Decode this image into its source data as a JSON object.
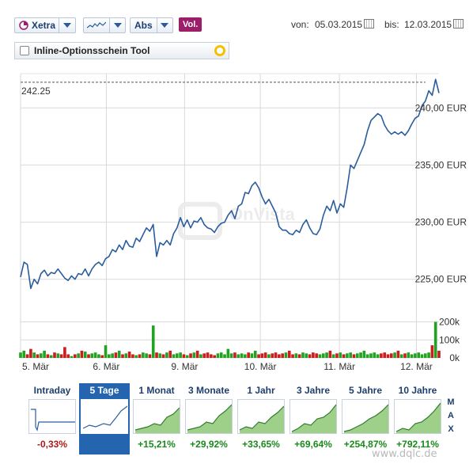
{
  "toolbar": {
    "exchange": "Xetra",
    "mode": "Abs",
    "vol_label": "Vol.",
    "chart_icon": "line-chart-icon",
    "from_label": "von:",
    "from_date": "05.03.2015",
    "to_label": "bis:",
    "to_date": "12.03.2015"
  },
  "tool": {
    "label": "Inline-Optionsschein Tool"
  },
  "watermark": "OnVista",
  "chart_data": {
    "type": "line",
    "title": "",
    "xlabel": "",
    "ylabel": "",
    "reference_label": "242.25",
    "reference_value": 242.25,
    "ylim": [
      222,
      243
    ],
    "yticks": [
      "240,00 EUR",
      "235,00 EUR",
      "230,00 EUR",
      "225,00 EUR"
    ],
    "ytick_values": [
      240,
      235,
      230,
      225
    ],
    "xticks": [
      "5. Mär",
      "6. Mär",
      "9. Mär",
      "10. Mär",
      "11. Mär",
      "12. Mär"
    ],
    "price": [
      225.2,
      226.5,
      226.3,
      224.2,
      225.0,
      224.6,
      225.5,
      225.8,
      225.3,
      225.6,
      225.5,
      225.9,
      225.5,
      225.1,
      224.9,
      225.3,
      225.0,
      225.5,
      225.4,
      225.9,
      225.3,
      225.9,
      226.3,
      226.5,
      226.2,
      226.8,
      227.0,
      227.6,
      227.4,
      228.0,
      227.6,
      228.4,
      227.9,
      227.8,
      228.6,
      228.3,
      228.9,
      229.5,
      229.2,
      229.8,
      227.0,
      228.2,
      228.0,
      228.4,
      228.0,
      229.0,
      229.5,
      230.4,
      229.6,
      230.2,
      229.5,
      230.1,
      230.0,
      230.4,
      229.8,
      229.5,
      229.4,
      229.1,
      229.6,
      229.9,
      230.0,
      230.6,
      231.0,
      230.3,
      231.4,
      231.6,
      232.6,
      232.5,
      233.2,
      233.5,
      233.0,
      232.2,
      231.6,
      232.0,
      231.4,
      230.8,
      229.6,
      229.3,
      229.3,
      229.0,
      228.9,
      229.3,
      229.1,
      229.8,
      230.2,
      229.5,
      229.0,
      228.9,
      229.4,
      230.6,
      231.4,
      231.0,
      231.9,
      230.8,
      231.6,
      231.3,
      233.0,
      235.0,
      234.7,
      235.4,
      236.1,
      236.8,
      238.0,
      238.9,
      239.2,
      239.5,
      239.3,
      238.5,
      238.0,
      237.7,
      237.9,
      237.7,
      237.9,
      237.6,
      238.0,
      238.6,
      239.1,
      239.3,
      240.2,
      240.6,
      241.5,
      241.1,
      242.5,
      241.3
    ],
    "volume_ylim": [
      0,
      220000
    ],
    "volume_ticks": [
      "200k",
      "100k",
      "0k"
    ],
    "volume_tick_values": [
      200000,
      100000,
      0
    ],
    "volume": [
      30000,
      40000,
      20000,
      50000,
      30000,
      20000,
      25000,
      40000,
      20000,
      15000,
      30000,
      25000,
      20000,
      60000,
      20000,
      10000,
      20000,
      25000,
      40000,
      35000,
      20000,
      25000,
      30000,
      20000,
      15000,
      70000,
      20000,
      25000,
      30000,
      40000,
      20000,
      25000,
      35000,
      20000,
      15000,
      20000,
      30000,
      25000,
      20000,
      180000,
      30000,
      25000,
      20000,
      30000,
      40000,
      20000,
      25000,
      30000,
      20000,
      15000,
      25000,
      30000,
      40000,
      20000,
      25000,
      30000,
      20000,
      15000,
      25000,
      30000,
      20000,
      50000,
      25000,
      30000,
      20000,
      25000,
      20000,
      30000,
      25000,
      40000,
      20000,
      25000,
      30000,
      20000,
      25000,
      30000,
      20000,
      25000,
      30000,
      40000,
      20000,
      25000,
      20000,
      30000,
      25000,
      20000,
      30000,
      25000,
      20000,
      25000,
      30000,
      40000,
      20000,
      25000,
      30000,
      20000,
      25000,
      30000,
      20000,
      25000,
      30000,
      40000,
      20000,
      25000,
      30000,
      20000,
      25000,
      30000,
      20000,
      25000,
      30000,
      40000,
      20000,
      25000,
      30000,
      20000,
      25000,
      30000,
      20000,
      25000,
      30000,
      70000,
      200000,
      40000
    ],
    "volume_colors": [
      "#c81e1e",
      "#21a321"
    ]
  },
  "periods": [
    {
      "label": "Intraday",
      "change": "-0,33%",
      "sign": "neg",
      "active": false,
      "icon": "intraday-thumb"
    },
    {
      "label": "5 Tage",
      "change": "",
      "sign": "pos",
      "active": true,
      "icon": "5day-thumb"
    },
    {
      "label": "1 Monat",
      "change": "+15,21%",
      "sign": "pos",
      "active": false,
      "icon": "1month-thumb"
    },
    {
      "label": "3 Monate",
      "change": "+29,92%",
      "sign": "pos",
      "active": false,
      "icon": "3month-thumb"
    },
    {
      "label": "1 Jahr",
      "change": "+33,65%",
      "sign": "pos",
      "active": false,
      "icon": "1year-thumb"
    },
    {
      "label": "3 Jahre",
      "change": "+69,64%",
      "sign": "pos",
      "active": false,
      "icon": "3year-thumb"
    },
    {
      "label": "5 Jahre",
      "change": "+254,87%",
      "sign": "pos",
      "active": false,
      "icon": "5year-thumb"
    },
    {
      "label": "10 Jahre",
      "change": "+792,11%",
      "sign": "pos",
      "active": false,
      "icon": "10year-thumb"
    }
  ],
  "max_label": [
    "M",
    "A",
    "X"
  ],
  "footer_watermark": "www.dqlc.de",
  "colors": {
    "line": "#2b5d9c",
    "accent": "#2565b0",
    "positive": "#1a8a1a",
    "negative": "#b01818",
    "vol_button": "#9c1d6a"
  }
}
